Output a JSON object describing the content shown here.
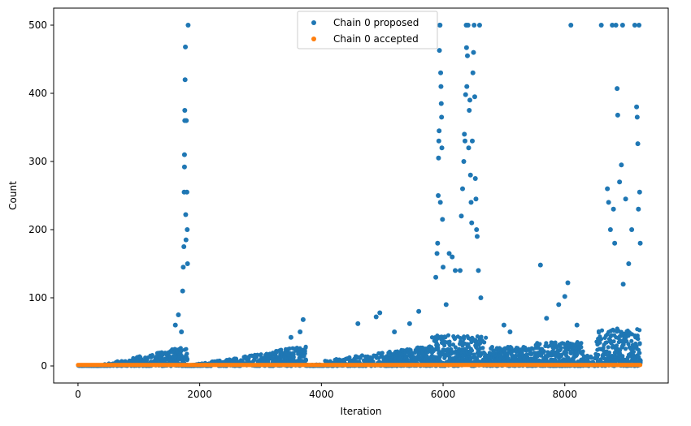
{
  "chart_data": {
    "type": "scatter",
    "title": "",
    "xlabel": "Iteration",
    "ylabel": "Count",
    "xlim": [
      -400,
      9700
    ],
    "ylim": [
      -25,
      525
    ],
    "xticks": [
      0,
      2000,
      4000,
      6000,
      8000
    ],
    "yticks": [
      0,
      100,
      200,
      300,
      400,
      500
    ],
    "grid": false,
    "legend_position": "top-center",
    "series": [
      {
        "name": "Chain 0 proposed",
        "color": "#1f77b4",
        "marker": "circle",
        "points": [
          [
            1600,
            60
          ],
          [
            1650,
            75
          ],
          [
            1700,
            50
          ],
          [
            1720,
            110
          ],
          [
            1730,
            145
          ],
          [
            1740,
            175
          ],
          [
            1745,
            255
          ],
          [
            1750,
            292
          ],
          [
            1750,
            310
          ],
          [
            1755,
            360
          ],
          [
            1755,
            375
          ],
          [
            1760,
            420
          ],
          [
            1765,
            468
          ],
          [
            1780,
            360
          ],
          [
            1790,
            255
          ],
          [
            1795,
            200
          ],
          [
            1800,
            150
          ],
          [
            1810,
            500
          ],
          [
            1770,
            222
          ],
          [
            1775,
            185
          ],
          [
            3700,
            68
          ],
          [
            3500,
            42
          ],
          [
            3650,
            50
          ],
          [
            4600,
            62
          ],
          [
            4900,
            72
          ],
          [
            4960,
            78
          ],
          [
            5200,
            50
          ],
          [
            5450,
            62
          ],
          [
            5600,
            80
          ],
          [
            5880,
            130
          ],
          [
            5900,
            165
          ],
          [
            5910,
            180
          ],
          [
            5920,
            250
          ],
          [
            5925,
            305
          ],
          [
            5930,
            330
          ],
          [
            5935,
            345
          ],
          [
            5940,
            463
          ],
          [
            5945,
            500
          ],
          [
            5950,
            500
          ],
          [
            5955,
            240
          ],
          [
            5960,
            430
          ],
          [
            5965,
            410
          ],
          [
            5970,
            385
          ],
          [
            5975,
            365
          ],
          [
            5980,
            320
          ],
          [
            5990,
            215
          ],
          [
            6000,
            145
          ],
          [
            6050,
            90
          ],
          [
            6100,
            165
          ],
          [
            6150,
            160
          ],
          [
            6200,
            140
          ],
          [
            6280,
            140
          ],
          [
            6300,
            220
          ],
          [
            6320,
            260
          ],
          [
            6340,
            300
          ],
          [
            6350,
            340
          ],
          [
            6360,
            330
          ],
          [
            6370,
            398
          ],
          [
            6380,
            500
          ],
          [
            6385,
            467
          ],
          [
            6390,
            410
          ],
          [
            6400,
            455
          ],
          [
            6410,
            500
          ],
          [
            6420,
            320
          ],
          [
            6430,
            375
          ],
          [
            6440,
            390
          ],
          [
            6450,
            280
          ],
          [
            6460,
            240
          ],
          [
            6470,
            210
          ],
          [
            6480,
            330
          ],
          [
            6490,
            430
          ],
          [
            6500,
            460
          ],
          [
            6510,
            500
          ],
          [
            6520,
            395
          ],
          [
            6530,
            275
          ],
          [
            6540,
            245
          ],
          [
            6550,
            200
          ],
          [
            6560,
            190
          ],
          [
            6580,
            140
          ],
          [
            6600,
            500
          ],
          [
            6620,
            100
          ],
          [
            7000,
            60
          ],
          [
            7100,
            50
          ],
          [
            7600,
            148
          ],
          [
            7700,
            70
          ],
          [
            7900,
            90
          ],
          [
            8050,
            122
          ],
          [
            8000,
            102
          ],
          [
            8100,
            500
          ],
          [
            8200,
            60
          ],
          [
            8600,
            500
          ],
          [
            8700,
            260
          ],
          [
            8720,
            240
          ],
          [
            8750,
            200
          ],
          [
            8780,
            500
          ],
          [
            8800,
            230
          ],
          [
            8820,
            180
          ],
          [
            8840,
            500
          ],
          [
            8860,
            407
          ],
          [
            8870,
            368
          ],
          [
            8900,
            270
          ],
          [
            8930,
            295
          ],
          [
            8950,
            500
          ],
          [
            8960,
            120
          ],
          [
            9000,
            245
          ],
          [
            9050,
            150
          ],
          [
            9100,
            200
          ],
          [
            9150,
            500
          ],
          [
            9180,
            380
          ],
          [
            9190,
            365
          ],
          [
            9200,
            326
          ],
          [
            9210,
            230
          ],
          [
            9220,
            500
          ],
          [
            9230,
            255
          ],
          [
            9240,
            180
          ]
        ]
      },
      {
        "name": "Chain 0 accepted",
        "color": "#ff7f0e",
        "marker": "circle",
        "points": []
      }
    ]
  }
}
